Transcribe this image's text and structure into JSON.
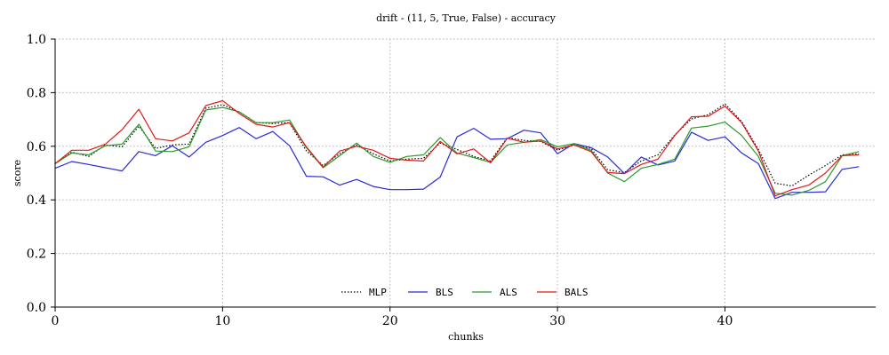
{
  "chart_data": {
    "type": "line",
    "title": "drift - (11, 5, True, False) - accuracy",
    "xlabel": "chunks",
    "ylabel": "score",
    "xlim": [
      0,
      49
    ],
    "ylim": [
      0,
      1
    ],
    "xticks": [
      0,
      10,
      20,
      30,
      40
    ],
    "yticks": [
      0.0,
      0.2,
      0.4,
      0.6,
      0.8,
      1.0
    ],
    "ytick_labels": [
      "0.0",
      "0.2",
      "0.4",
      "0.6",
      "0.8",
      "1.0"
    ],
    "grid": true,
    "legend_position": "bottom-center",
    "x": [
      0,
      1,
      2,
      3,
      4,
      5,
      6,
      7,
      8,
      9,
      10,
      11,
      12,
      13,
      14,
      15,
      16,
      17,
      18,
      19,
      20,
      21,
      22,
      23,
      24,
      25,
      26,
      27,
      28,
      29,
      30,
      31,
      32,
      33,
      34,
      35,
      36,
      37,
      38,
      39,
      40,
      41,
      42,
      43,
      44,
      45,
      46,
      47,
      48
    ],
    "series": [
      {
        "name": "MLP",
        "color": "#000000",
        "dash": "dotted",
        "values": [
          0.535,
          0.578,
          0.562,
          0.605,
          0.598,
          0.675,
          0.592,
          0.605,
          0.608,
          0.742,
          0.755,
          0.728,
          0.688,
          0.685,
          0.688,
          0.583,
          0.528,
          0.572,
          0.605,
          0.572,
          0.545,
          0.552,
          0.555,
          0.612,
          0.588,
          0.562,
          0.545,
          0.632,
          0.622,
          0.618,
          0.585,
          0.605,
          0.592,
          0.512,
          0.502,
          0.545,
          0.568,
          0.642,
          0.702,
          0.718,
          0.758,
          0.692,
          0.588,
          0.462,
          0.452,
          0.492,
          0.528,
          0.568,
          0.572
        ]
      },
      {
        "name": "BLS",
        "color": "#2a2ad6",
        "dash": "solid",
        "values": [
          0.518,
          0.543,
          0.532,
          0.52,
          0.508,
          0.58,
          0.565,
          0.602,
          0.56,
          0.615,
          0.64,
          0.67,
          0.628,
          0.655,
          0.602,
          0.488,
          0.486,
          0.455,
          0.476,
          0.45,
          0.438,
          0.438,
          0.44,
          0.485,
          0.635,
          0.667,
          0.626,
          0.628,
          0.66,
          0.65,
          0.572,
          0.61,
          0.595,
          0.56,
          0.498,
          0.56,
          0.53,
          0.545,
          0.652,
          0.622,
          0.635,
          0.575,
          0.535,
          0.405,
          0.428,
          0.428,
          0.43,
          0.514,
          0.524
        ]
      },
      {
        "name": "ALS",
        "color": "#2a9a2a",
        "dash": "solid",
        "values": [
          0.535,
          0.575,
          0.568,
          0.602,
          0.608,
          0.682,
          0.582,
          0.58,
          0.598,
          0.735,
          0.745,
          0.728,
          0.688,
          0.688,
          0.698,
          0.595,
          0.52,
          0.565,
          0.612,
          0.562,
          0.54,
          0.562,
          0.568,
          0.632,
          0.575,
          0.558,
          0.54,
          0.605,
          0.615,
          0.625,
          0.598,
          0.61,
          0.585,
          0.5,
          0.468,
          0.518,
          0.532,
          0.552,
          0.668,
          0.675,
          0.69,
          0.64,
          0.562,
          0.425,
          0.418,
          0.435,
          0.468,
          0.565,
          0.58
        ]
      },
      {
        "name": "BALS",
        "color": "#dd1a1a",
        "dash": "solid",
        "values": [
          0.535,
          0.585,
          0.585,
          0.608,
          0.662,
          0.738,
          0.628,
          0.62,
          0.65,
          0.752,
          0.77,
          0.722,
          0.682,
          0.672,
          0.688,
          0.598,
          0.522,
          0.582,
          0.6,
          0.585,
          0.555,
          0.548,
          0.545,
          0.618,
          0.572,
          0.59,
          0.538,
          0.63,
          0.615,
          0.62,
          0.59,
          0.605,
          0.58,
          0.502,
          0.498,
          0.532,
          0.552,
          0.64,
          0.71,
          0.712,
          0.75,
          0.688,
          0.582,
          0.415,
          0.438,
          0.455,
          0.5,
          0.565,
          0.568
        ]
      }
    ]
  }
}
